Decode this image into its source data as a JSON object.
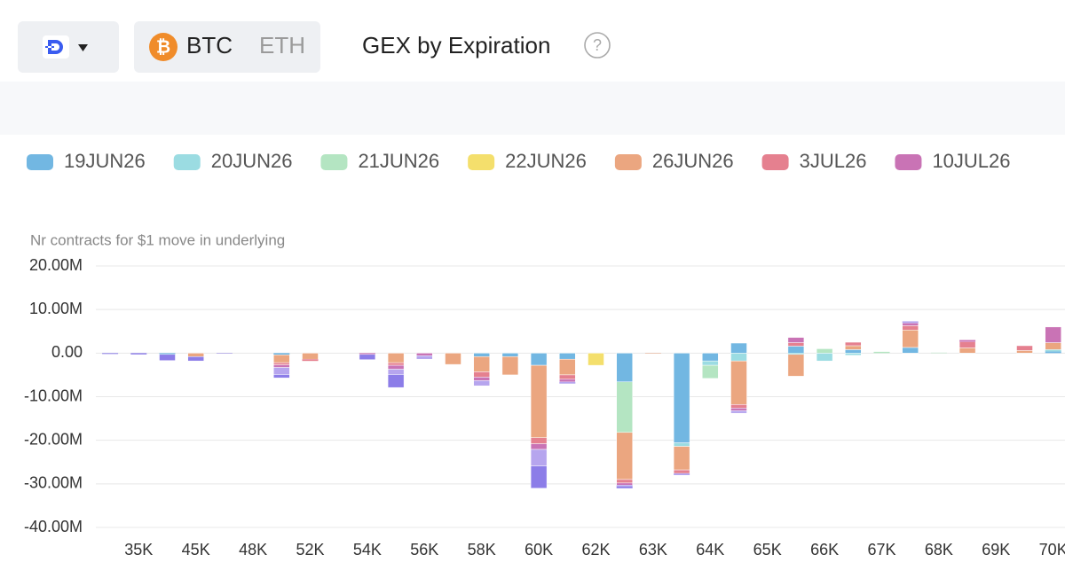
{
  "toolbar": {
    "coin_a": "BTC",
    "coin_b": "ETH",
    "help": "?"
  },
  "chart_data": {
    "type": "bar",
    "stacked": true,
    "title": "GEX by Expiration",
    "y_label": "Nr contracts for $1 move in underlying",
    "categories": [
      null,
      "35K",
      null,
      "45K",
      null,
      "48K",
      null,
      "52K",
      null,
      "54K",
      null,
      "56K",
      null,
      "58K",
      null,
      "60K",
      null,
      "62K",
      null,
      "63K",
      null,
      "64K",
      null,
      "65K",
      null,
      "66K",
      null,
      "67K",
      null,
      "68K",
      null,
      "69K",
      null,
      "70K"
    ],
    "ylim": [
      -40000000,
      20000000
    ],
    "yticks": [
      {
        "value": 20000000,
        "label": "20.00M"
      },
      {
        "value": 10000000,
        "label": "10.00M"
      },
      {
        "value": 0,
        "label": "0.00"
      },
      {
        "value": -10000000,
        "label": "-10.00M"
      },
      {
        "value": -20000000,
        "label": "-20.00M"
      },
      {
        "value": -30000000,
        "label": "-30.00M"
      },
      {
        "value": -40000000,
        "label": "-40.00M"
      }
    ],
    "grid": true,
    "series": [
      {
        "name": "19JUN26",
        "color": "#72b7e2",
        "values": [
          0,
          0,
          -300000,
          0,
          0,
          0,
          -400000,
          0,
          0,
          0,
          0,
          0,
          0,
          -800000,
          -800000,
          -2800000,
          -1400000,
          0,
          -6600000,
          0,
          -20600000,
          -1800000,
          2300000,
          0,
          1600000,
          0,
          800000,
          0,
          1300000,
          0,
          0,
          0,
          0,
          400000
        ]
      },
      {
        "name": "20JUN26",
        "color": "#9bdce2",
        "values": [
          0,
          0,
          0,
          0,
          0,
          0,
          0,
          0,
          0,
          0,
          0,
          0,
          0,
          0,
          0,
          0,
          0,
          0,
          0,
          0,
          -800000,
          -1000000,
          -1800000,
          0,
          -300000,
          -1800000,
          -500000,
          0,
          0,
          0,
          0,
          0,
          0,
          400000
        ]
      },
      {
        "name": "21JUN26",
        "color": "#b4e5c2",
        "values": [
          0,
          0,
          0,
          0,
          0,
          0,
          0,
          0,
          0,
          0,
          0,
          0,
          0,
          0,
          0,
          0,
          0,
          0,
          -11600000,
          0,
          0,
          -3000000,
          0,
          0,
          0,
          1000000,
          0,
          300000,
          0,
          100000,
          0,
          0,
          0,
          0
        ]
      },
      {
        "name": "22JUN26",
        "color": "#f4df6c",
        "values": [
          0,
          0,
          0,
          0,
          0,
          0,
          0,
          0,
          0,
          0,
          0,
          0,
          0,
          0,
          0,
          0,
          0,
          -2800000,
          0,
          0,
          0,
          0,
          0,
          0,
          0,
          0,
          0,
          0,
          0,
          0,
          0,
          0,
          0,
          0
        ]
      },
      {
        "name": "26JUN26",
        "color": "#eba680",
        "values": [
          0,
          0,
          0,
          -800000,
          0,
          0,
          -1800000,
          -1400000,
          0,
          0,
          -2200000,
          0,
          -2600000,
          -3500000,
          -4200000,
          -16600000,
          -3600000,
          0,
          -10800000,
          -100000,
          -5400000,
          0,
          -10000000,
          0,
          -5000000,
          0,
          900000,
          0,
          4000000,
          0,
          1200000,
          0,
          600000,
          1600000
        ]
      },
      {
        "name": "3JUL26",
        "color": "#e5808f",
        "values": [
          0,
          0,
          0,
          0,
          0,
          0,
          -500000,
          -400000,
          0,
          0,
          -600000,
          0,
          0,
          -1200000,
          0,
          -1400000,
          -1000000,
          0,
          -800000,
          0,
          -800000,
          0,
          -800000,
          0,
          800000,
          0,
          800000,
          0,
          1000000,
          0,
          1400000,
          0,
          1100000,
          0
        ]
      },
      {
        "name": "10JUL26",
        "color": "#c973b5",
        "values": [
          0,
          0,
          0,
          0,
          0,
          0,
          -600000,
          0,
          0,
          -300000,
          -900000,
          -600000,
          0,
          -800000,
          0,
          -1300000,
          -600000,
          0,
          -500000,
          0,
          0,
          0,
          -600000,
          0,
          1200000,
          0,
          0,
          0,
          600000,
          0,
          400000,
          0,
          0,
          3600000
        ]
      },
      {
        "name": null,
        "color": "#b6a5ee",
        "values": [
          0,
          0,
          0,
          0,
          0,
          0,
          -1600000,
          0,
          0,
          0,
          -1200000,
          -800000,
          0,
          -1200000,
          0,
          -3800000,
          -400000,
          0,
          -300000,
          0,
          -400000,
          0,
          -600000,
          0,
          0,
          0,
          0,
          0,
          400000,
          0,
          0,
          0,
          0,
          0
        ]
      },
      {
        "name": null,
        "color": "#8c7de8",
        "values": [
          -200000,
          -300000,
          -1400000,
          -1000000,
          -100000,
          0,
          -800000,
          0,
          0,
          -1200000,
          -3000000,
          0,
          0,
          0,
          0,
          -5100000,
          0,
          0,
          -400000,
          0,
          0,
          0,
          0,
          0,
          0,
          0,
          0,
          0,
          0,
          0,
          0,
          0,
          0,
          0
        ]
      }
    ]
  }
}
